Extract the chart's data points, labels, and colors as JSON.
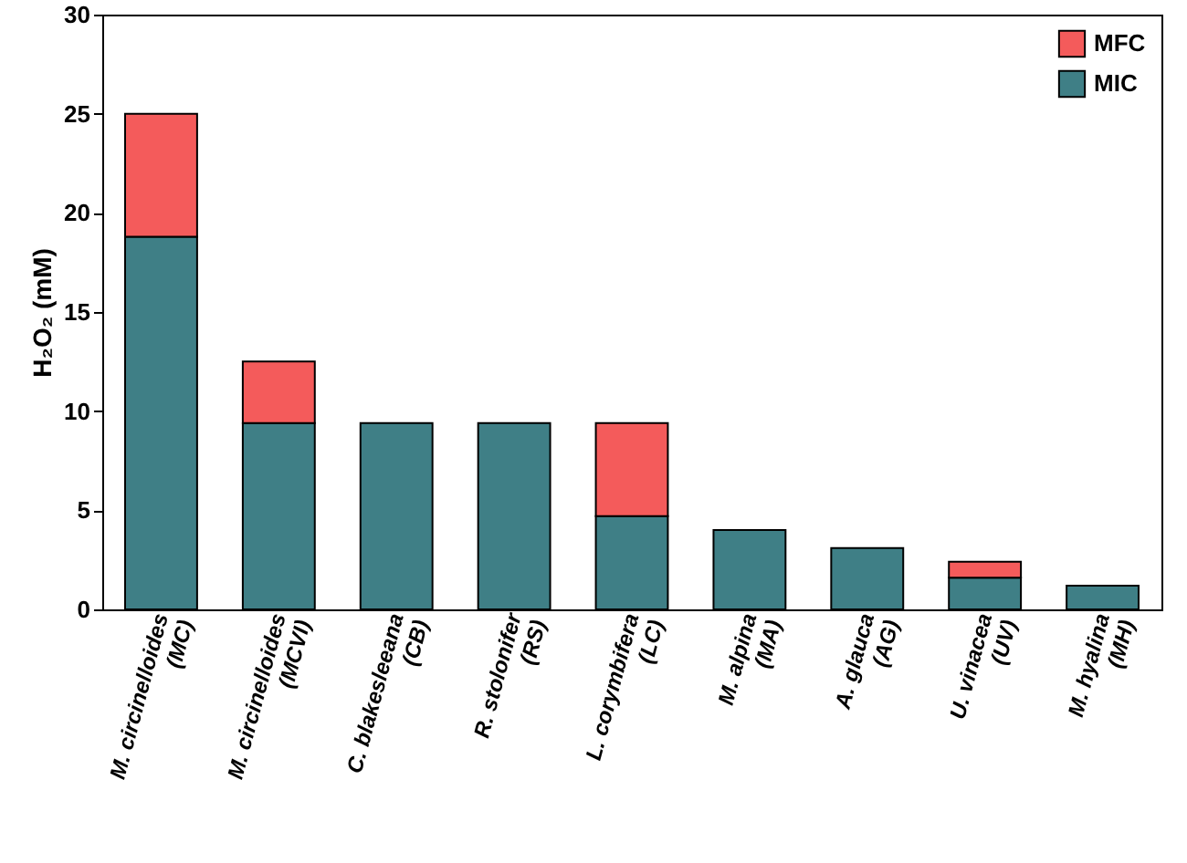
{
  "chart_data": {
    "type": "bar",
    "stacked": true,
    "ylabel": "H₂O₂ (mM)",
    "categories": [
      "M. circinelloides\n(MC)",
      "M. circinelloides\n(MCVI)",
      "C. blakesleeana\n(CB)",
      "R. stolonifer\n(RS)",
      "L. corymbifera\n(LC)",
      "M. alpina\n(MA)",
      "A. glauca\n(AG)",
      "U. vinacea\n(UV)",
      "M. hyalina\n(MH)"
    ],
    "series": [
      {
        "name": "MIC",
        "color": "#3f7f86",
        "values": [
          18.8,
          9.4,
          9.4,
          9.4,
          4.7,
          4.0,
          3.1,
          1.6,
          1.2
        ]
      },
      {
        "name": "MFC",
        "color": "#f45b5b",
        "values": [
          6.2,
          3.1,
          null,
          null,
          4.7,
          null,
          null,
          0.8,
          null
        ]
      }
    ],
    "ylim": [
      0,
      30
    ],
    "yticks": [
      0,
      5,
      10,
      15,
      20,
      25,
      30
    ],
    "legend": "top right"
  }
}
